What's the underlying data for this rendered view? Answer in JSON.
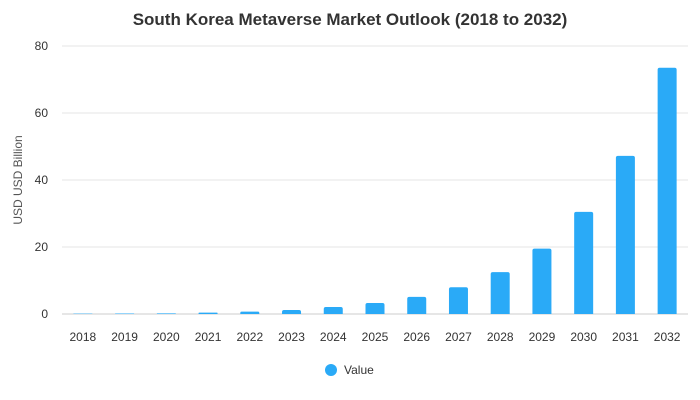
{
  "chart_data": {
    "type": "bar",
    "title": "South Korea Metaverse Market Outlook (2018 to 2032)",
    "xlabel": "",
    "ylabel": "USD USD Billion",
    "categories": [
      "2018",
      "2019",
      "2020",
      "2021",
      "2022",
      "2023",
      "2024",
      "2025",
      "2026",
      "2027",
      "2028",
      "2029",
      "2030",
      "2031",
      "2032"
    ],
    "series": [
      {
        "name": "Value",
        "color": "#2aaaf7",
        "values": [
          0.1,
          0.15,
          0.2,
          0.4,
          0.7,
          1.2,
          2.1,
          3.3,
          5.1,
          8.0,
          12.5,
          19.5,
          30.5,
          47.2,
          73.5
        ]
      }
    ],
    "ylim": [
      0,
      80
    ],
    "yticks": [
      0,
      20,
      40,
      60,
      80
    ],
    "grid": true,
    "legend_position": "bottom"
  }
}
